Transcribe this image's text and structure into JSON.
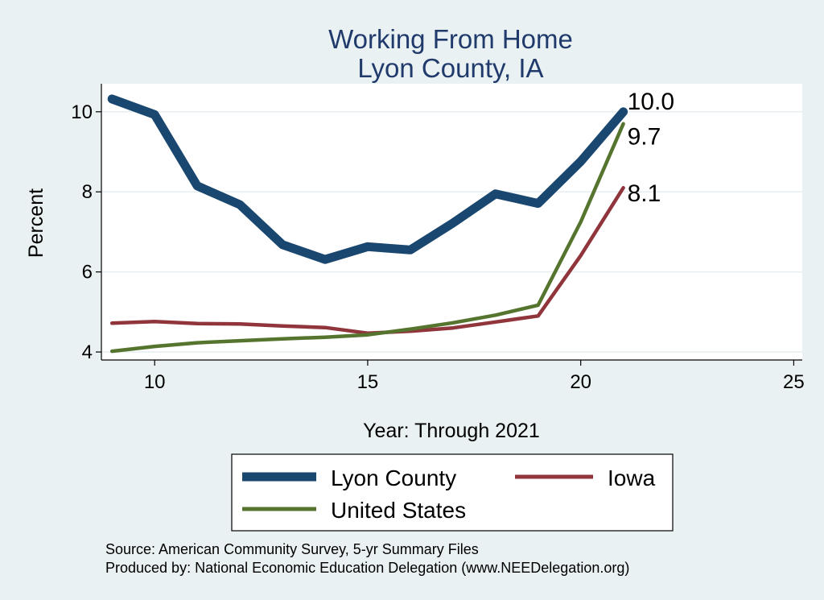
{
  "chart_data": {
    "type": "line",
    "title": [
      "Working From Home",
      "Lyon County, IA"
    ],
    "xlabel": "Year: Through 2021",
    "ylabel": "Percent",
    "xlim": [
      8.75,
      25.2
    ],
    "ylim": [
      3.8,
      10.7
    ],
    "xticks": [
      10,
      15,
      20,
      25
    ],
    "yticks": [
      4,
      6,
      8,
      10
    ],
    "grid": true,
    "legend_position": "bottom",
    "x": [
      9,
      10,
      11,
      12,
      13,
      14,
      15,
      16,
      17,
      18,
      19,
      20,
      21
    ],
    "series": [
      {
        "name": "Lyon County",
        "color": "#1a476f",
        "values": [
          10.32,
          9.93,
          8.15,
          7.68,
          6.68,
          6.31,
          6.63,
          6.55,
          7.22,
          7.95,
          7.71,
          8.76,
          10.0
        ],
        "end_label": "10.0"
      },
      {
        "name": "Iowa",
        "color": "#90353b",
        "values": [
          4.72,
          4.76,
          4.71,
          4.7,
          4.65,
          4.61,
          4.47,
          4.52,
          4.6,
          4.75,
          4.9,
          6.41,
          8.1
        ],
        "end_label": "8.1"
      },
      {
        "name": "United States",
        "color": "#55752f",
        "values": [
          4.02,
          4.14,
          4.23,
          4.28,
          4.33,
          4.37,
          4.43,
          4.57,
          4.73,
          4.92,
          5.17,
          7.25,
          9.7
        ],
        "end_label": "9.7"
      }
    ]
  },
  "source_lines": [
    "Source: American Community Survey, 5-yr Summary Files",
    "Produced by: National Economic Education Delegation (www.NEEDelegation.org)"
  ]
}
